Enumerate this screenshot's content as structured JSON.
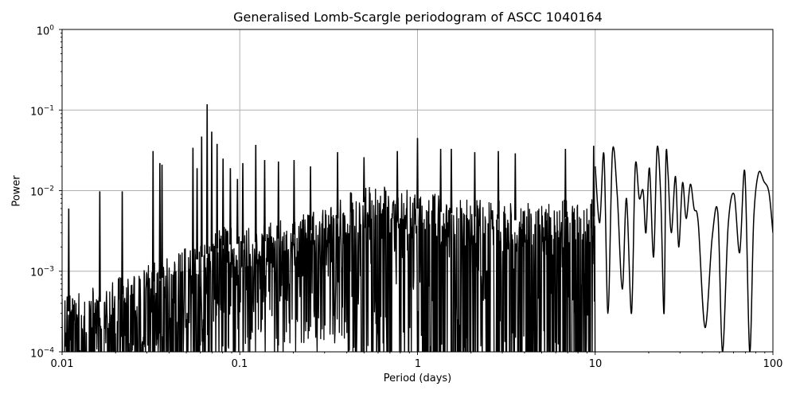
{
  "chart_data": {
    "type": "line",
    "title": "Generalised Lomb-Scargle periodogram of ASCC 1040164",
    "xlabel": "Period (days)",
    "ylabel": "Power",
    "xscale": "log",
    "yscale": "log",
    "xlim": [
      0.01,
      100
    ],
    "ylim": [
      0.0001,
      1
    ],
    "grid": true,
    "legend": null,
    "line_color": "#000000",
    "grid_color": "#b0b0b0",
    "x_ticks": [
      {
        "value": 0.01,
        "label": "0.01"
      },
      {
        "value": 0.1,
        "label": "0.1"
      },
      {
        "value": 1,
        "label": "1"
      },
      {
        "value": 10,
        "label": "10"
      },
      {
        "value": 100,
        "label": "100"
      }
    ],
    "y_ticks": [
      {
        "value": 1,
        "base": "10",
        "exp": "0"
      },
      {
        "value": 0.1,
        "base": "10",
        "exp": "−1"
      },
      {
        "value": 0.01,
        "base": "10",
        "exp": "−2"
      },
      {
        "value": 0.001,
        "base": "10",
        "exp": "−3"
      },
      {
        "value": 0.0001,
        "base": "10",
        "exp": "−4"
      }
    ],
    "noise_envelope": {
      "description": "Dense spiky noise floor (approximate upper envelope of typical peaks)",
      "x": [
        0.01,
        0.02,
        0.04,
        0.08,
        0.15,
        0.3,
        0.5,
        1.0,
        2.0,
        4.0,
        8.0
      ],
      "y": [
        0.0005,
        0.0008,
        0.0015,
        0.0035,
        0.004,
        0.006,
        0.012,
        0.01,
        0.008,
        0.007,
        0.008
      ]
    },
    "prominent_peaks": [
      {
        "x": 0.0109,
        "y": 0.006
      },
      {
        "x": 0.0163,
        "y": 0.0098
      },
      {
        "x": 0.0218,
        "y": 0.0098
      },
      {
        "x": 0.0325,
        "y": 0.031
      },
      {
        "x": 0.0355,
        "y": 0.022
      },
      {
        "x": 0.0365,
        "y": 0.021
      },
      {
        "x": 0.0545,
        "y": 0.034
      },
      {
        "x": 0.0575,
        "y": 0.019
      },
      {
        "x": 0.061,
        "y": 0.047
      },
      {
        "x": 0.0655,
        "y": 0.118
      },
      {
        "x": 0.0695,
        "y": 0.054
      },
      {
        "x": 0.0745,
        "y": 0.038
      },
      {
        "x": 0.0805,
        "y": 0.025
      },
      {
        "x": 0.0885,
        "y": 0.019
      },
      {
        "x": 0.097,
        "y": 0.014
      },
      {
        "x": 0.104,
        "y": 0.022
      },
      {
        "x": 0.123,
        "y": 0.037
      },
      {
        "x": 0.138,
        "y": 0.024
      },
      {
        "x": 0.165,
        "y": 0.023
      },
      {
        "x": 0.202,
        "y": 0.024
      },
      {
        "x": 0.25,
        "y": 0.02
      },
      {
        "x": 0.355,
        "y": 0.03
      },
      {
        "x": 0.5,
        "y": 0.026
      },
      {
        "x": 0.77,
        "y": 0.031
      },
      {
        "x": 1.0,
        "y": 0.045
      },
      {
        "x": 1.35,
        "y": 0.033
      },
      {
        "x": 1.55,
        "y": 0.033
      },
      {
        "x": 2.1,
        "y": 0.03
      },
      {
        "x": 2.85,
        "y": 0.031
      },
      {
        "x": 3.55,
        "y": 0.029
      },
      {
        "x": 6.8,
        "y": 0.033
      },
      {
        "x": 9.8,
        "y": 0.036
      }
    ],
    "smooth_tail": {
      "description": "Resolved low-frequency structure (period > ~10 d)",
      "x": [
        10.0,
        10.6,
        11.2,
        11.8,
        12.5,
        13.3,
        14.2,
        15.0,
        16.0,
        16.8,
        17.7,
        18.6,
        19.3,
        20.2,
        21.3,
        22.3,
        23.4,
        24.4,
        25.0,
        25.7,
        26.8,
        28.3,
        29.5,
        31.0,
        32.5,
        34.3,
        36.0,
        38.0,
        41.5,
        45.5,
        49.0,
        52.0,
        56.0,
        60.5,
        65.0,
        69.5,
        74.0,
        78.0,
        83.0,
        89.0,
        95.0,
        100.0
      ],
      "y": [
        0.02,
        0.004,
        0.028,
        0.0003,
        0.03,
        0.009,
        0.0006,
        0.008,
        0.0003,
        0.02,
        0.008,
        0.01,
        0.003,
        0.019,
        0.0015,
        0.034,
        0.008,
        0.0003,
        0.025,
        0.016,
        0.003,
        0.015,
        0.002,
        0.0125,
        0.0045,
        0.012,
        0.006,
        0.004,
        0.0002,
        0.0026,
        0.0052,
        0.0001,
        0.0037,
        0.009,
        0.0017,
        0.017,
        0.0001,
        0.0045,
        0.0165,
        0.013,
        0.0095,
        0.003
      ]
    }
  }
}
